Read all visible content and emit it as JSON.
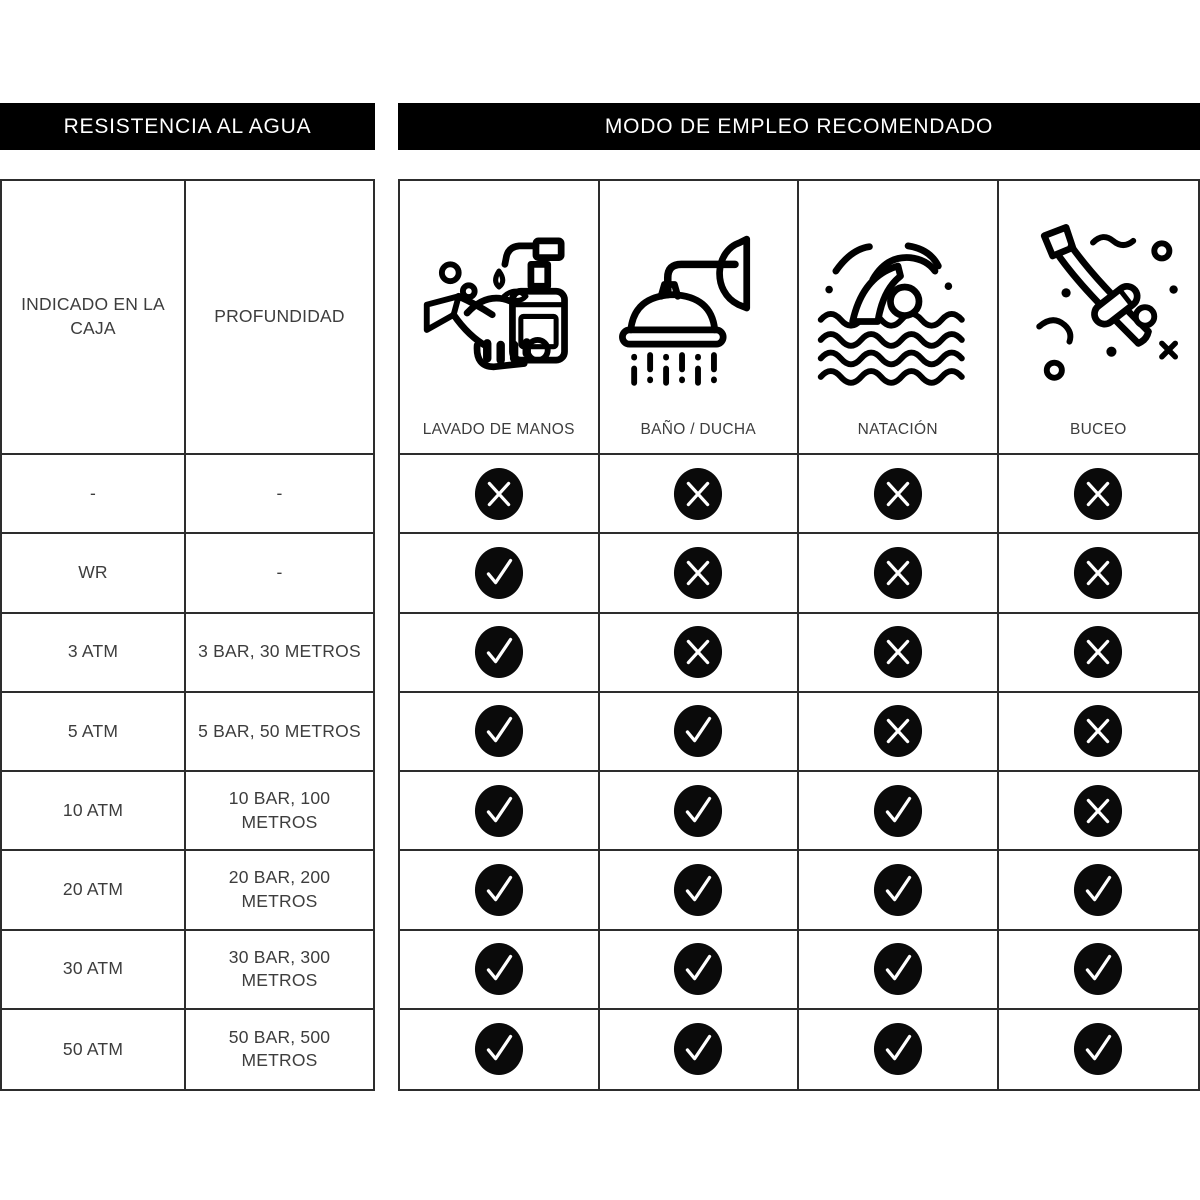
{
  "colors": {
    "banner_bg": "#000000",
    "banner_text": "#ffffff",
    "border": "#2d2d2d",
    "text": "#3d3d3d",
    "mark_bg": "#0a0a0a",
    "mark_glyph": "#ffffff"
  },
  "banners": {
    "left": "RESISTENCIA AL AGUA",
    "right": "MODO DE EMPLEO RECOMENDADO"
  },
  "left_table": {
    "headers": [
      "INDICADO EN LA CAJA",
      "PROFUNDIDAD"
    ],
    "rows": [
      {
        "box": "-",
        "depth": "-"
      },
      {
        "box": "WR",
        "depth": "-"
      },
      {
        "box": "3 ATM",
        "depth": "3 BAR, 30 METROS"
      },
      {
        "box": "5 ATM",
        "depth": "5 BAR, 50 METROS"
      },
      {
        "box": "10 ATM",
        "depth": "10 BAR, 100 METROS"
      },
      {
        "box": "20 ATM",
        "depth": "20 BAR, 200 METROS"
      },
      {
        "box": "30 ATM",
        "depth": "30 BAR, 300 METROS"
      },
      {
        "box": "50 ATM",
        "depth": "50 BAR, 500 METROS"
      }
    ]
  },
  "usage_table": {
    "columns": [
      {
        "label": "LAVADO DE MANOS",
        "icon": "handwash-icon"
      },
      {
        "label": "BAÑO / DUCHA",
        "icon": "shower-icon"
      },
      {
        "label": "NATACIÓN",
        "icon": "swimming-icon"
      },
      {
        "label": "BUCEO",
        "icon": "diving-icon"
      }
    ],
    "rows": [
      [
        "cross",
        "cross",
        "cross",
        "cross"
      ],
      [
        "check",
        "cross",
        "cross",
        "cross"
      ],
      [
        "check",
        "cross",
        "cross",
        "cross"
      ],
      [
        "check",
        "check",
        "cross",
        "cross"
      ],
      [
        "check",
        "check",
        "check",
        "cross"
      ],
      [
        "check",
        "check",
        "check",
        "check"
      ],
      [
        "check",
        "check",
        "check",
        "check"
      ],
      [
        "check",
        "check",
        "check",
        "check"
      ]
    ]
  },
  "chart_data": {
    "type": "table",
    "title": "RESISTENCIA AL AGUA / MODO DE EMPLEO RECOMENDADO",
    "columns": [
      "INDICADO EN LA CAJA",
      "PROFUNDIDAD",
      "LAVADO DE MANOS",
      "BAÑO / DUCHA",
      "NATACIÓN",
      "BUCEO"
    ],
    "rows": [
      [
        "-",
        "-",
        "no",
        "no",
        "no",
        "no"
      ],
      [
        "WR",
        "-",
        "yes",
        "no",
        "no",
        "no"
      ],
      [
        "3 ATM",
        "3 BAR, 30 METROS",
        "yes",
        "no",
        "no",
        "no"
      ],
      [
        "5 ATM",
        "5 BAR, 50 METROS",
        "yes",
        "yes",
        "no",
        "no"
      ],
      [
        "10 ATM",
        "10 BAR, 100 METROS",
        "yes",
        "yes",
        "yes",
        "no"
      ],
      [
        "20 ATM",
        "20 BAR, 200 METROS",
        "yes",
        "yes",
        "yes",
        "yes"
      ],
      [
        "30 ATM",
        "30 BAR, 300 METROS",
        "yes",
        "yes",
        "yes",
        "yes"
      ],
      [
        "50 ATM",
        "50 BAR, 500 METROS",
        "yes",
        "yes",
        "yes",
        "yes"
      ]
    ]
  }
}
